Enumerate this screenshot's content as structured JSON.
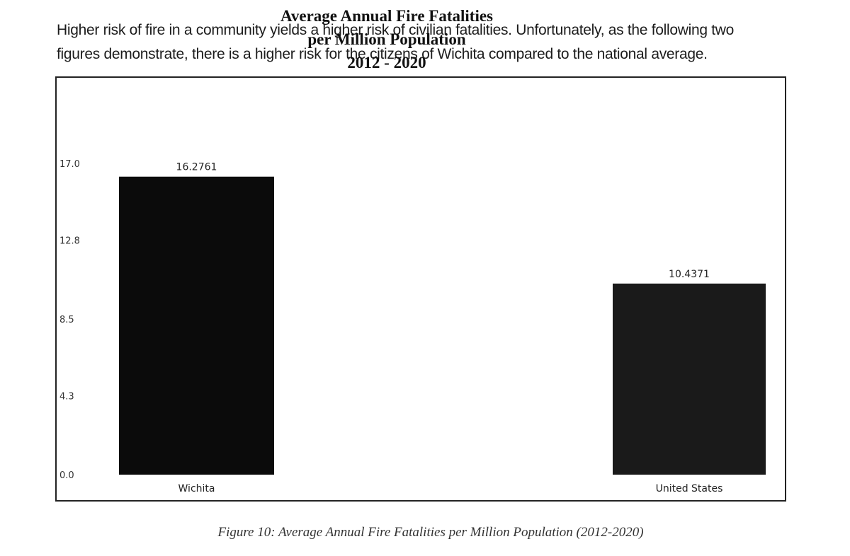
{
  "intro": {
    "line1": "Higher risk of fire in a community yields a higher risk of civilian fatalities.  Unfortunately, as the following two",
    "line2": "figures demonstrate, there is a higher risk for the citizens of Wichita compared to the national average."
  },
  "chart_data": {
    "type": "bar",
    "title_lines": [
      "Average Annual Fire Fatalities",
      "per Million Population",
      "2012 - 2020"
    ],
    "categories": [
      "Wichita",
      "United States"
    ],
    "values": [
      16.2761,
      10.4371
    ],
    "value_labels": [
      "16.2761",
      "10.4371"
    ],
    "y_ticks": [
      "0.0",
      "4.3",
      "8.5",
      "12.8",
      "17.0"
    ],
    "ylim": [
      0,
      17
    ],
    "grid": false,
    "legend": "none",
    "colors": {
      "bar": "#0b0b0b",
      "bar_secondary": "#1a1a1a"
    }
  },
  "caption": "Figure 10: Average Annual Fire Fatalities per Million Population (2012-2020)"
}
